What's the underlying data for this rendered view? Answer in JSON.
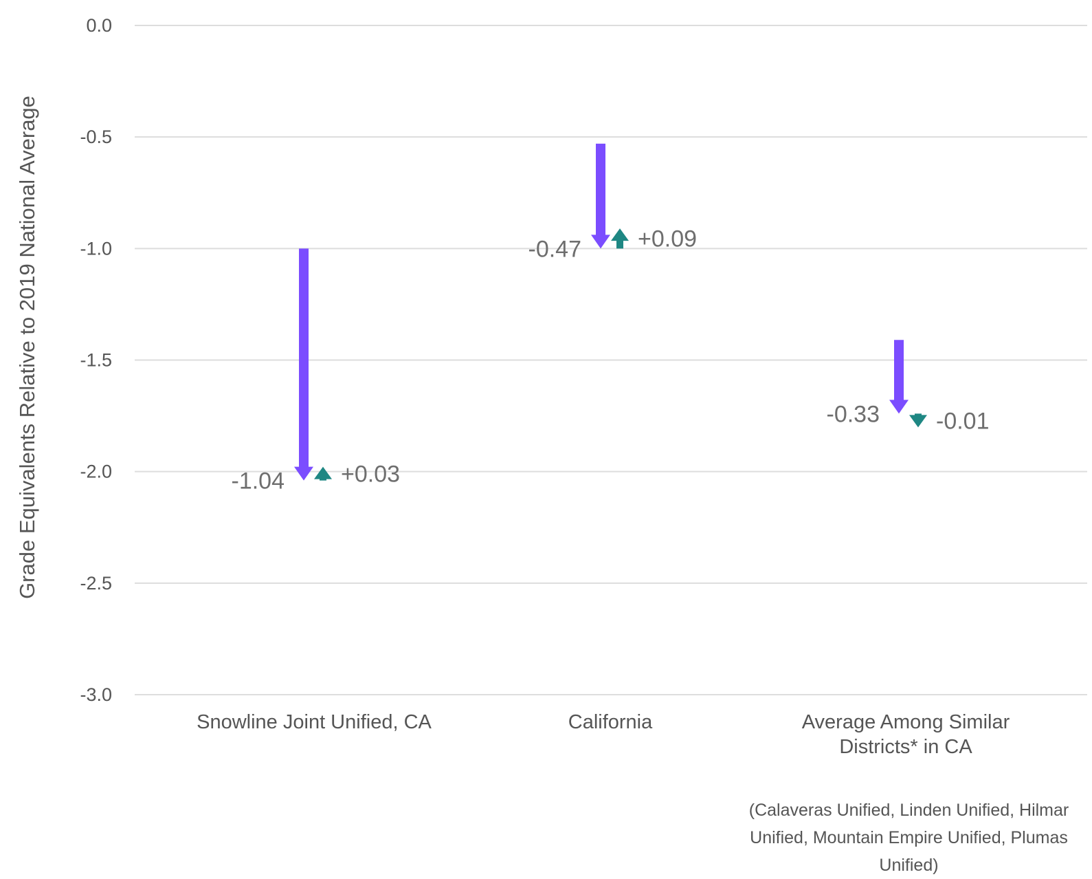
{
  "chart_data": {
    "type": "arrow-change",
    "ylabel": "Grade Equivalents Relative to 2019 National Average",
    "ylim": [
      -3.0,
      0.0
    ],
    "yticks": [
      "0.0",
      "-0.5",
      "-1.0",
      "-1.5",
      "-2.0",
      "-2.5",
      "-3.0"
    ],
    "grid": true,
    "categories": [
      "Snowline Joint Unified, CA",
      "California",
      "Average Among Similar Districts* in CA"
    ],
    "note": "(Calaveras Unified, Linden Unified, Hilmar Unified, Mountain Empire Unified, Plumas Unified)",
    "series": [
      {
        "start": [
          -1.0,
          -0.53,
          -1.41
        ],
        "end": [
          -2.04,
          -1.0,
          -1.74
        ],
        "labels": [
          "-1.04",
          "-0.47",
          "-0.33"
        ],
        "color": "#7b4dff"
      },
      {
        "start": [
          -2.04,
          -1.0,
          -1.74
        ],
        "end": [
          -2.01,
          -0.91,
          -1.75
        ],
        "labels": [
          "+0.03",
          "+0.09",
          "-0.01"
        ],
        "color": "#1e8783"
      }
    ]
  }
}
